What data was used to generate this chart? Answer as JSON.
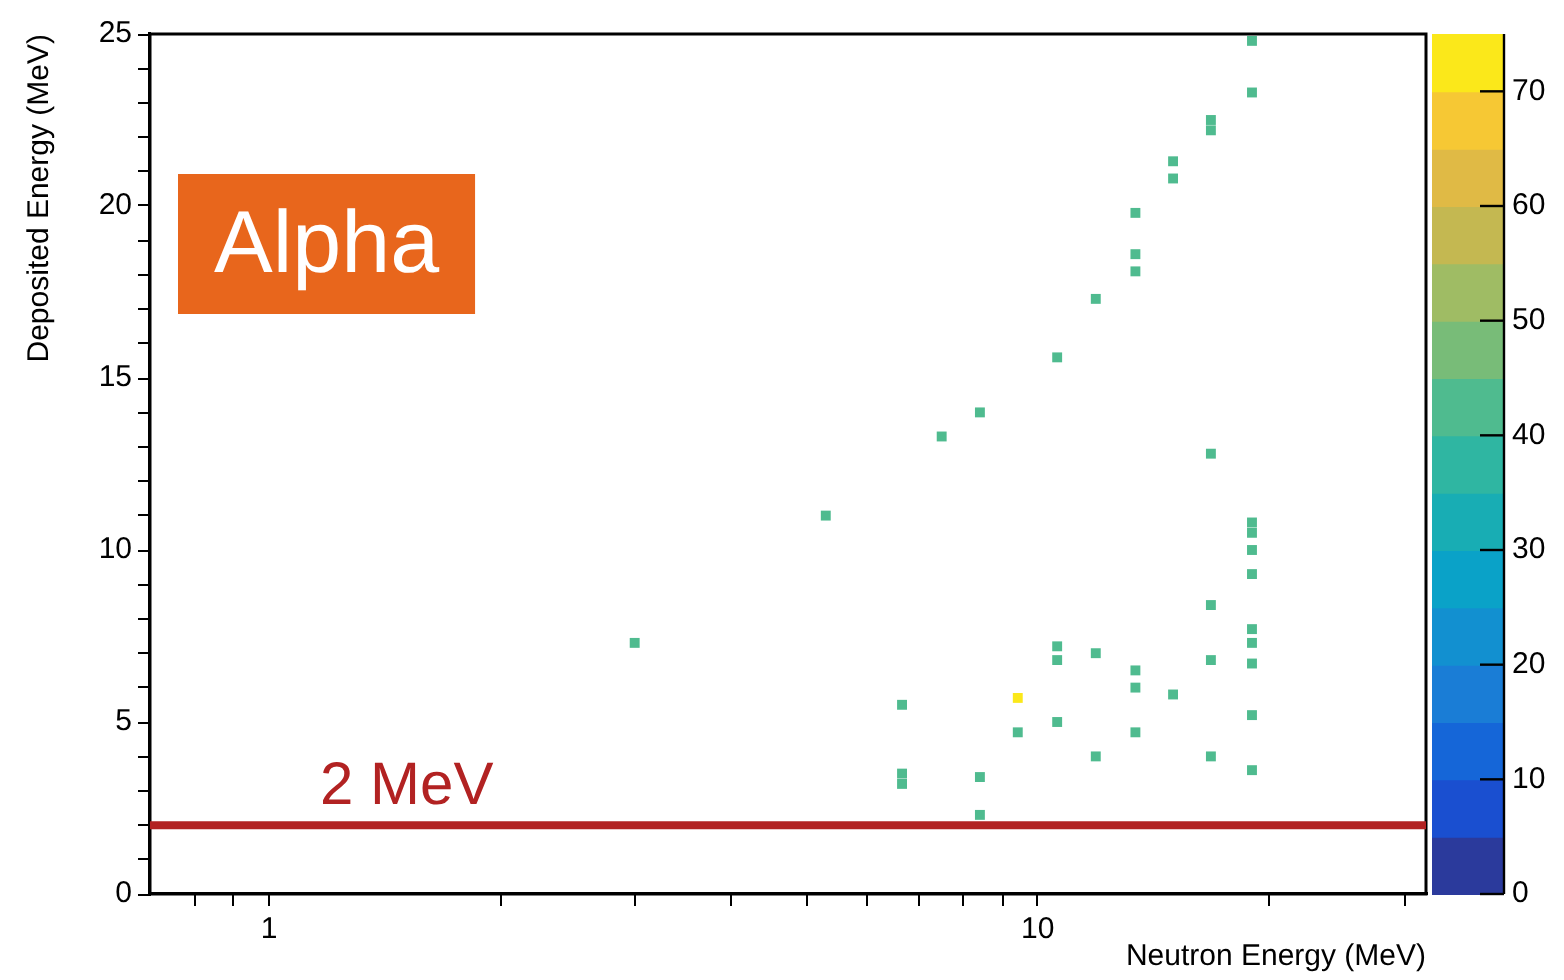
{
  "chart_data": {
    "type": "scatter",
    "xlabel": "Neutron Energy (MeV)",
    "ylabel": "Deposited Energy (MeV)",
    "x": [
      2.99,
      5.3,
      6.66,
      6.66,
      6.66,
      8.41,
      8.41,
      9.42,
      9.42,
      10.6,
      10.6,
      10.6,
      11.9,
      11.9,
      13.4,
      13.4,
      13.4,
      15.0,
      16.8,
      16.8,
      16.8,
      19.0,
      19.0,
      19.0,
      19.0,
      19.0,
      19.0,
      19.0,
      19.0,
      19.0,
      19.0,
      19.0,
      16.8,
      16.8,
      16.8,
      15.0,
      15.0,
      13.4,
      13.4,
      13.4,
      11.9,
      10.6,
      8.41,
      7.5
    ],
    "values": [
      7.3,
      11.0,
      5.5,
      3.5,
      3.2,
      3.4,
      2.3,
      5.7,
      4.7,
      7.2,
      6.8,
      5.0,
      7.0,
      4.0,
      6.5,
      6.0,
      4.7,
      5.8,
      8.4,
      6.8,
      4.0,
      10.8,
      10.5,
      10.0,
      9.3,
      7.7,
      7.3,
      6.7,
      5.2,
      3.6,
      24.8,
      23.3,
      22.5,
      22.2,
      12.8,
      21.3,
      20.8,
      19.8,
      18.6,
      18.1,
      17.3,
      15.6,
      14.0,
      13.3
    ],
    "cvalues": [
      42,
      42,
      42,
      42,
      42,
      42,
      42,
      74,
      42,
      42,
      42,
      42,
      42,
      42,
      42,
      42,
      42,
      42,
      42,
      42,
      42,
      42,
      42,
      42,
      42,
      42,
      42,
      42,
      42,
      42,
      42,
      42,
      42,
      42,
      42,
      42,
      42,
      42,
      42,
      42,
      42,
      42,
      42,
      42
    ],
    "marker": "square",
    "log": "x",
    "xlim": [
      0.7,
      32
    ],
    "ylim": [
      0,
      25
    ],
    "xticks": [
      {
        "value": 0.8,
        "label": null
      },
      {
        "value": 0.9,
        "label": null
      },
      1,
      {
        "value": 2,
        "label": null
      },
      {
        "value": 3,
        "label": null
      },
      {
        "value": 4,
        "label": null
      },
      {
        "value": 5,
        "label": null
      },
      {
        "value": 6,
        "label": null
      },
      {
        "value": 7,
        "label": null
      },
      {
        "value": 8,
        "label": null
      },
      {
        "value": 9,
        "label": null
      },
      10,
      {
        "value": 20,
        "label": null
      },
      {
        "value": 30,
        "label": null
      }
    ],
    "yticks": [
      0,
      {
        "value": 1,
        "label": null
      },
      {
        "value": 2,
        "label": null
      },
      {
        "value": 3,
        "label": null
      },
      {
        "value": 4,
        "label": null
      },
      5,
      {
        "value": 6,
        "label": null
      },
      {
        "value": 7,
        "label": null
      },
      {
        "value": 8,
        "label": null
      },
      {
        "value": 9,
        "label": null
      },
      10,
      {
        "value": 11,
        "label": null
      },
      {
        "value": 12,
        "label": null
      },
      {
        "value": 13,
        "label": null
      },
      {
        "value": 14,
        "label": null
      },
      15,
      {
        "value": 16,
        "label": null
      },
      {
        "value": 17,
        "label": null
      },
      {
        "value": 18,
        "label": null
      },
      {
        "value": 19,
        "label": null
      },
      20,
      {
        "value": 21,
        "label": null
      },
      {
        "value": 22,
        "label": null
      },
      {
        "value": 23,
        "label": null
      },
      {
        "value": 24,
        "label": null
      },
      25
    ],
    "clim": [
      0,
      75
    ],
    "cticks": [
      0,
      10,
      20,
      30,
      40,
      50,
      60,
      70
    ],
    "ref_lines": [
      {
        "axis": "y",
        "value": 2,
        "label": "2 MeV",
        "color": "#b22222"
      }
    ],
    "annotations": [
      "Alpha"
    ],
    "grid": false,
    "legend": false
  }
}
